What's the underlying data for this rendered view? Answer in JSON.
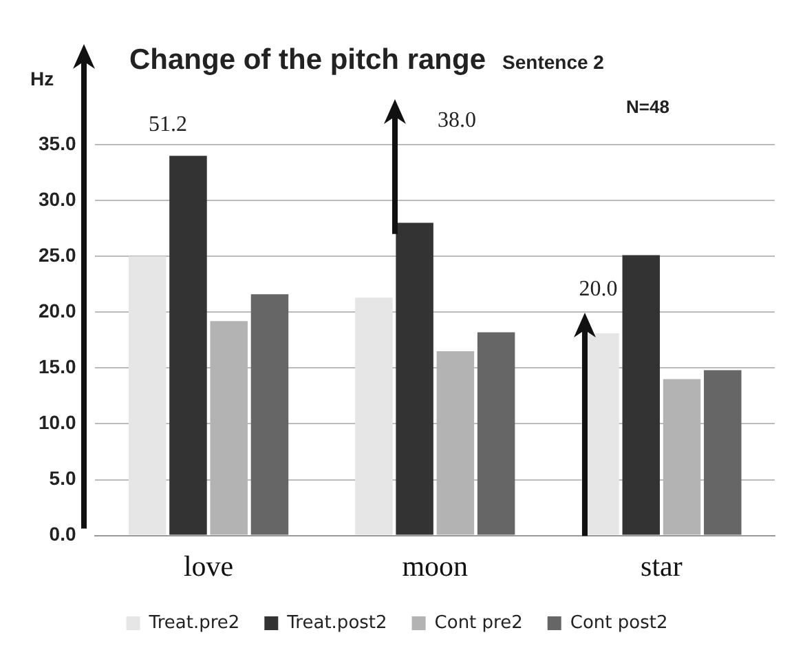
{
  "chart_data": {
    "type": "bar",
    "title": "Change of the pitch range",
    "subtitle": "Sentence 2",
    "ylabel": "Hz",
    "categories": [
      "love",
      "moon",
      "star"
    ],
    "series": [
      {
        "name": "Treat.pre2",
        "color": "#e6e6e6",
        "values": [
          25.0,
          21.3,
          18.1
        ]
      },
      {
        "name": "Treat.post2",
        "color": "#333333",
        "values": [
          34.0,
          28.0,
          25.1
        ]
      },
      {
        "name": "Cont pre2",
        "color": "#b3b3b3",
        "values": [
          19.2,
          16.5,
          14.0
        ]
      },
      {
        "name": "Cont post2",
        "color": "#666666",
        "values": [
          21.6,
          18.2,
          14.8
        ]
      }
    ],
    "annotations": [
      "51.2",
      "38.0",
      {
        "text": "20.0",
        "x": "star",
        "y": 20
      },
      "N=48"
    ],
    "ylim": [
      0,
      35
    ],
    "yticks": [
      {
        "value": 0,
        "label": "0.0"
      },
      {
        "value": 5,
        "label": "5.0"
      },
      {
        "value": 10,
        "label": "10.0"
      },
      {
        "value": 15,
        "label": "15.0"
      },
      {
        "value": 20,
        "label": "20.0"
      },
      {
        "value": 25,
        "label": "25.0"
      },
      {
        "value": 30,
        "label": "30.0"
      },
      {
        "value": 35,
        "label": "35.0"
      }
    ],
    "grid": "y",
    "legend": "bottom"
  }
}
